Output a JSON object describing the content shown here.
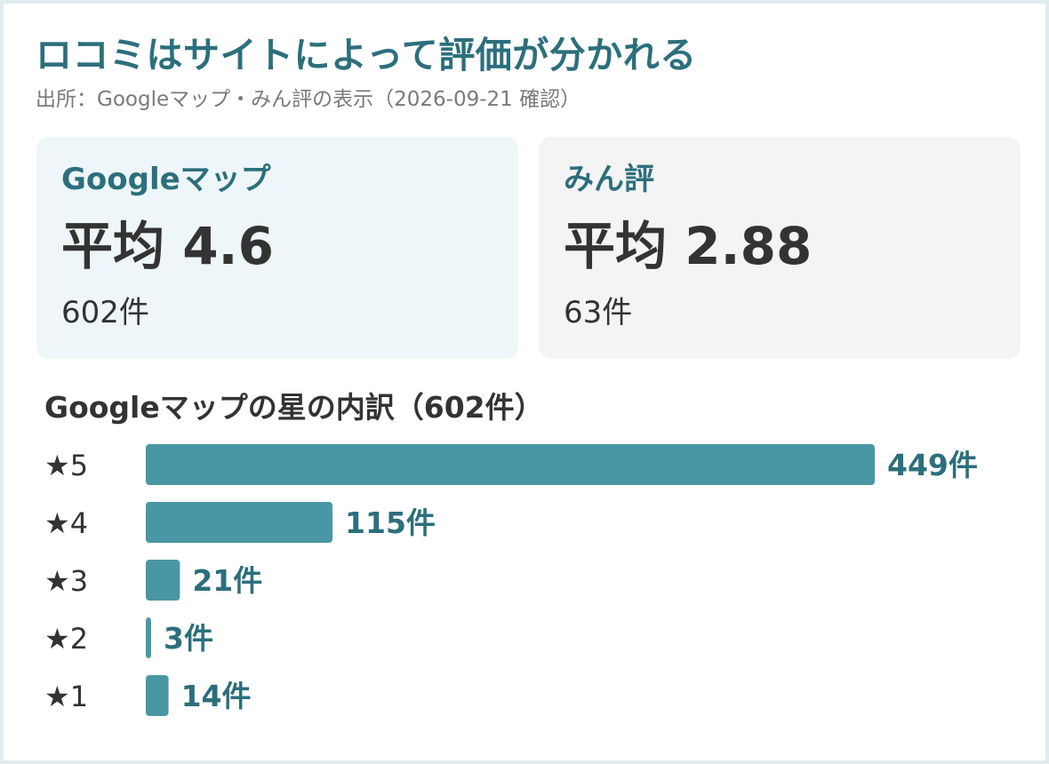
{
  "title": "ロコミはサイトによって評価が分かれる",
  "source": "出所：Googleマップ・みん評の表示（2026-09-21 確認）",
  "cards": [
    {
      "name": "Googleマップ",
      "average": "平均 4.6",
      "count": "602件"
    },
    {
      "name": "みん評",
      "average": "平均 2.88",
      "count": "63件"
    }
  ],
  "colors": {
    "accent": "#2c6f7c",
    "bar": "#4997a4",
    "card_google_bg": "#eef6f9",
    "card_minhyo_bg": "#f4f4f4"
  },
  "chart_data": {
    "type": "bar",
    "orientation": "horizontal",
    "title": "Googleマップの星の内訳（602件）",
    "categories": [
      "★5",
      "★4",
      "★3",
      "★2",
      "★1"
    ],
    "values": [
      449,
      115,
      21,
      3,
      14
    ],
    "value_labels": [
      "449件",
      "115件",
      "21件",
      "3件",
      "14件"
    ],
    "unit": "件",
    "xlim": [
      0,
      449
    ],
    "grid": false,
    "legend": "none"
  }
}
